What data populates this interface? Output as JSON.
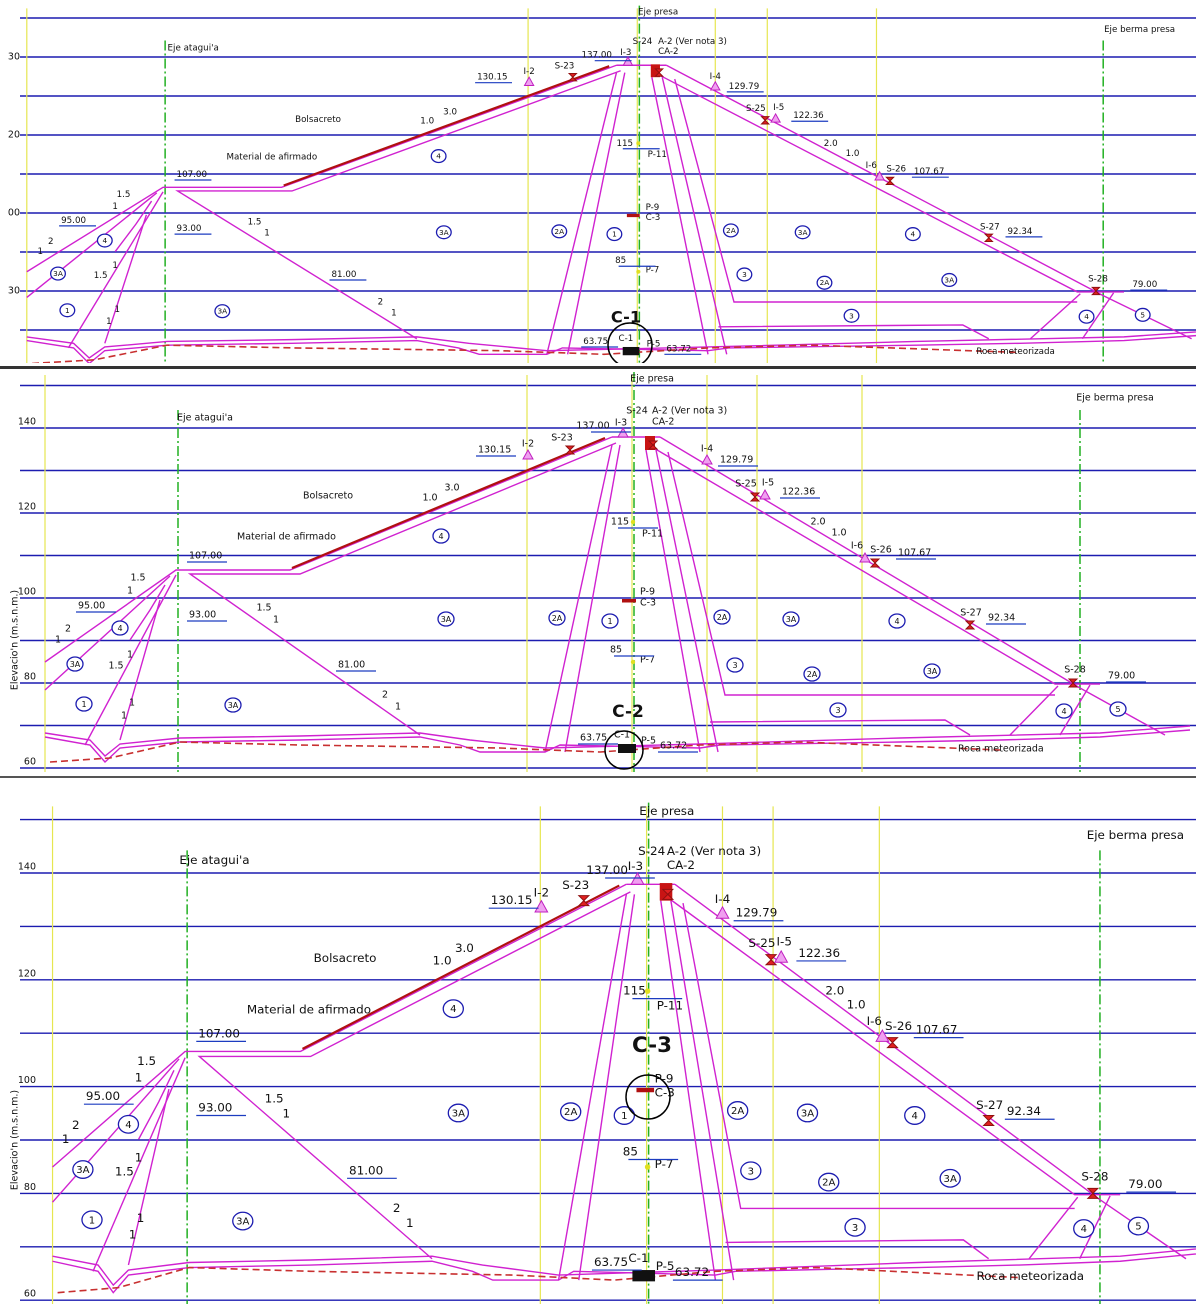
{
  "drawing": {
    "labels": [
      "Eje presa",
      "Eje atagui'a",
      "Eje berma presa",
      "137.00",
      "I-3",
      "S-24",
      "A-2 (Ver nota 3)",
      "CA-2",
      "130.15",
      "I-2",
      "S-23",
      "I-4",
      "129.79",
      "S-25",
      "I-5",
      "122.36",
      "Bolsacreto",
      "3.0",
      "1.0",
      "115",
      "P-11",
      "Material de afirmado",
      "107.00",
      "2.0",
      "1.0",
      "I-6",
      "S-26",
      "107.67",
      "1.5",
      "1",
      "95.00",
      "2",
      "1",
      "93.00",
      "1.5",
      "1",
      "P-9",
      "C-3",
      "S-27",
      "92.34",
      "81.00",
      "85",
      "P-7",
      "1",
      "1.5",
      "2",
      "1",
      "1",
      "1",
      "S-28",
      "79.00",
      "63.75",
      "C-1",
      "P-5",
      "63.72",
      "Roca meteorizada"
    ],
    "zones": [
      "3A",
      "1",
      "3A",
      "3A",
      "2A",
      "1",
      "2A",
      "3A",
      "4",
      "4",
      "4",
      "3",
      "2A",
      "3A",
      "3",
      "4",
      "5"
    ]
  },
  "panels": [
    {
      "marker": "C-1",
      "elevation_labels": [
        "30",
        "20",
        "00",
        "30"
      ]
    },
    {
      "marker": "C-2",
      "axis_title": "Elevacio'n (m.s.n.m.)",
      "elevation_labels": [
        "140",
        "120",
        "100",
        "80",
        "60"
      ]
    },
    {
      "marker": "C-3",
      "axis_title": "Elevacio'n (m.s.n.m.)",
      "elevation_labels": [
        "140",
        "120",
        "100",
        "80",
        "60"
      ]
    }
  ]
}
